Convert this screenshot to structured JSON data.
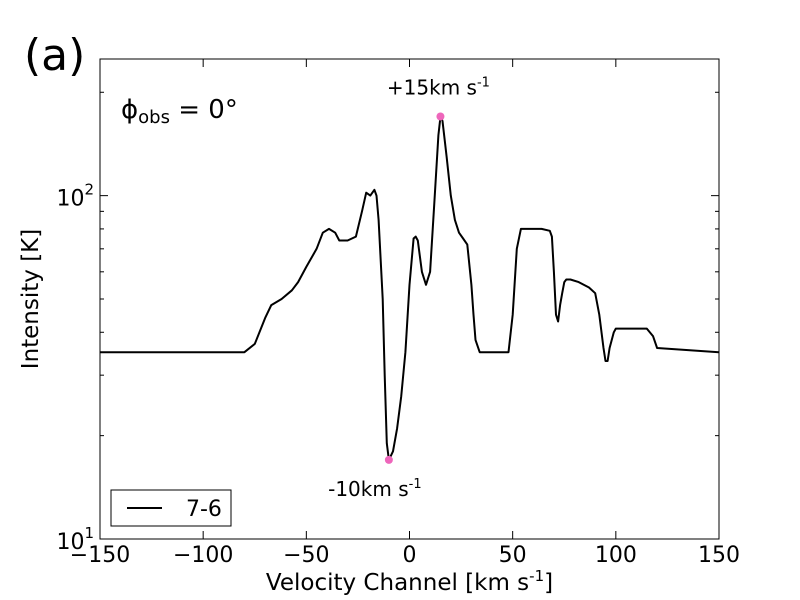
{
  "chart_data": {
    "type": "line",
    "panel_label": "(a)",
    "xlabel": "Velocity Channel [km s",
    "xlabel_sup": "-1",
    "xlabel_end": "]",
    "ylabel": "Intensity [K]",
    "y_scale": "log",
    "xlim": [
      -150,
      150
    ],
    "ylim": [
      10,
      250
    ],
    "x_ticks": [
      -150,
      -100,
      -50,
      0,
      50,
      100,
      150
    ],
    "x_tick_labels": [
      "−150",
      "−100",
      "−50",
      "0",
      "50",
      "100",
      "150"
    ],
    "y_major_ticks": [
      {
        "value": 10,
        "base": "10",
        "exp": "1"
      },
      {
        "value": 100,
        "base": "10",
        "exp": "2"
      }
    ],
    "grid": false,
    "legend": {
      "position": "lower-left",
      "entries": [
        {
          "label": "7-6",
          "color": "#000000"
        }
      ]
    },
    "annotations": {
      "phi_label": {
        "symbol": "ϕ",
        "sub": "obs",
        "rest": " = 0°"
      },
      "peak": {
        "text": "+15km s",
        "sup": "-1",
        "x": 15,
        "y": 170
      },
      "trough": {
        "text": "-10km s",
        "sup": "-1",
        "x": -10,
        "y": 17
      }
    },
    "marker_color": "#ee66bb",
    "series": [
      {
        "color": "#000000",
        "x": [
          -150,
          -80,
          -75,
          -70,
          -67,
          -62,
          -57,
          -54,
          -50,
          -45,
          -42,
          -39,
          -36,
          -34,
          -30,
          -26,
          -23,
          -21,
          -19,
          -17,
          -16,
          -15,
          -13,
          -12,
          -11,
          -10,
          -8,
          -6,
          -4,
          -2,
          0,
          2,
          3,
          4,
          6,
          8,
          10,
          12,
          14,
          15,
          16,
          18,
          20,
          22,
          24,
          26,
          28,
          30,
          31,
          32,
          34,
          40,
          48,
          50,
          52,
          54,
          55,
          56,
          57,
          58,
          60,
          64,
          68,
          69,
          70,
          71,
          72,
          73,
          74,
          75,
          76,
          78,
          82,
          87,
          90,
          92,
          94,
          95,
          96,
          97,
          99,
          100,
          102,
          104,
          115,
          118,
          120,
          150
        ],
        "y": [
          35,
          35,
          37,
          44,
          48,
          50,
          53,
          56,
          62,
          70,
          78,
          80,
          78,
          74,
          74,
          76,
          90,
          102,
          100,
          104,
          100,
          85,
          50,
          30,
          19,
          17,
          18,
          21,
          26,
          35,
          55,
          75,
          76,
          74,
          60,
          55,
          60,
          95,
          150,
          170,
          165,
          130,
          100,
          85,
          78,
          75,
          72,
          55,
          45,
          38,
          35,
          35,
          35,
          45,
          70,
          80,
          80,
          80,
          80,
          80,
          80,
          80,
          79,
          76,
          60,
          45,
          43,
          48,
          52,
          56,
          57,
          57,
          56,
          54,
          52,
          45,
          36,
          33,
          33,
          36,
          40,
          41,
          41,
          41,
          41,
          39,
          36,
          35
        ]
      }
    ]
  }
}
